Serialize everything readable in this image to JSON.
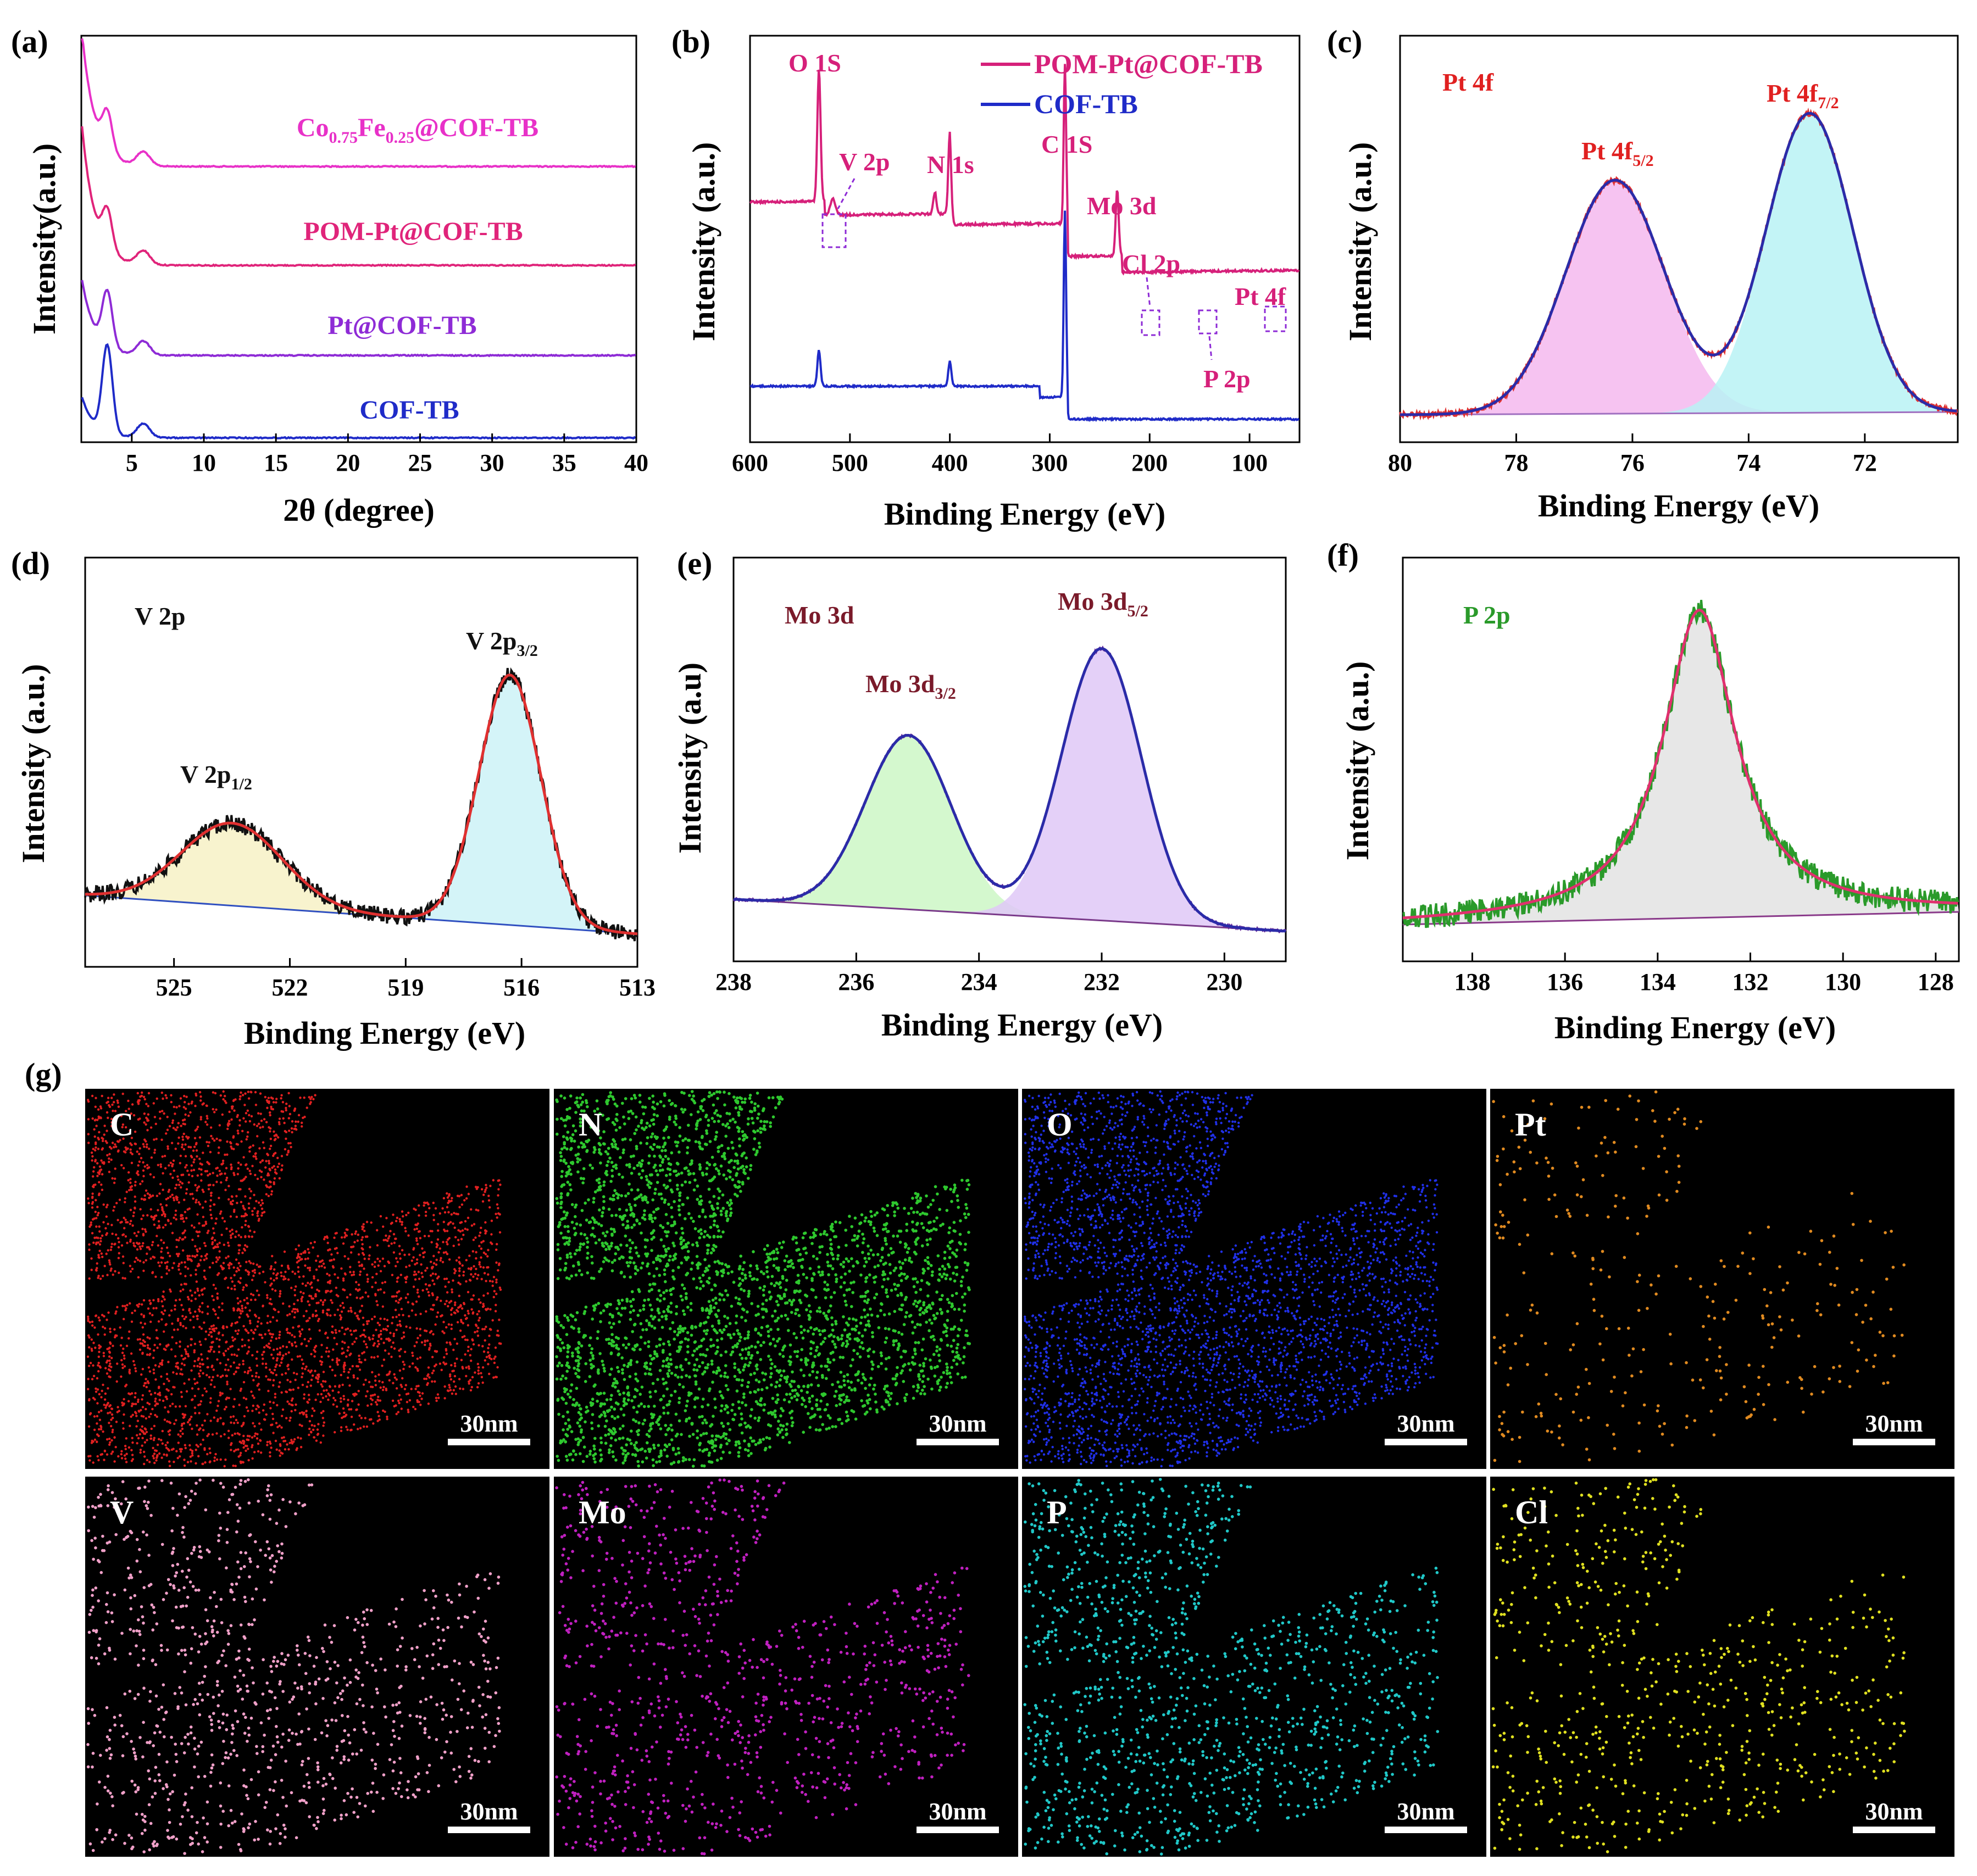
{
  "chart_data": [
    {
      "id": "a",
      "panel_label": "(a)",
      "type": "line",
      "xlabel": "2θ (degree)",
      "ylabel": "Intensity(a.u.)",
      "xlim": [
        1.5,
        40
      ],
      "xticks": [
        "5",
        "10",
        "15",
        "20",
        "25",
        "30",
        "35",
        "40"
      ],
      "series": [
        {
          "name": "Co0.75Fe0.25@COF-TB",
          "color": "#e831c8",
          "label_parts": [
            {
              "t": "Co",
              "sub": false
            },
            {
              "t": "0.75",
              "sub": true
            },
            {
              "t": "Fe",
              "sub": false
            },
            {
              "t": "0.25",
              "sub": true
            },
            {
              "t": "@COF-TB",
              "sub": false
            }
          ]
        },
        {
          "name": "POM-Pt@COF-TB",
          "color": "#e0247a",
          "label_parts": [
            {
              "t": "POM-Pt@COF-TB",
              "sub": false
            }
          ]
        },
        {
          "name": "Pt@COF-TB",
          "color": "#8e2bd6",
          "label_parts": [
            {
              "t": "Pt@COF-TB",
              "sub": false
            }
          ]
        },
        {
          "name": "COF-TB",
          "color": "#1f2bc8",
          "label_parts": [
            {
              "t": "COF-TB",
              "sub": false
            }
          ]
        }
      ],
      "peaks_2theta": [
        3.3,
        5.8
      ]
    },
    {
      "id": "b",
      "panel_label": "(b)",
      "type": "line",
      "xlabel": "Binding Energy (eV)",
      "ylabel": "Intensity (a.u.)",
      "xlim": [
        600,
        50
      ],
      "xticks": [
        "600",
        "500",
        "400",
        "300",
        "200",
        "100"
      ],
      "legend": [
        "POM-Pt@COF-TB",
        "COF-TB"
      ],
      "series": [
        {
          "name": "POM-Pt@COF-TB",
          "color": "#d6207a",
          "peaks_eV": [
            531,
            517,
            415,
            400,
            284.8,
            232.5
          ]
        },
        {
          "name": "COF-TB",
          "color": "#1f2bc8",
          "peaks_eV": [
            531,
            400,
            284.8
          ]
        }
      ],
      "annotations": [
        "O 1S",
        "V 2p",
        "N 1s",
        "C 1S",
        "Mo 3d",
        "Cl 2p",
        "Pt 4f",
        "P 2p"
      ]
    },
    {
      "id": "c",
      "panel_label": "(c)",
      "type": "line",
      "title": "Pt 4f",
      "xlabel": "Binding Energy (eV)",
      "ylabel": "Intensity (a.u.)",
      "xlim": [
        80,
        70.4
      ],
      "xticks": [
        "80",
        "78",
        "76",
        "74",
        "72"
      ],
      "fit_peaks": [
        {
          "name": "Pt 4f5/2",
          "center_eV": 76.3,
          "height": 0.78,
          "fill": "#f5b8ee"
        },
        {
          "name": "Pt 4f7/2",
          "center_eV": 72.95,
          "height": 1.0,
          "fill": "#b8f2f5"
        }
      ],
      "colors": {
        "raw": "#e03030",
        "fit": "#2b2ba8",
        "baseline": "#a070c0"
      }
    },
    {
      "id": "d",
      "panel_label": "(d)",
      "type": "line",
      "title": "V 2p",
      "xlabel": "Binding Energy (eV)",
      "ylabel": "Intensity (a.u.)",
      "xlim": [
        527.3,
        513
      ],
      "xticks": [
        "525",
        "522",
        "519",
        "516",
        "513"
      ],
      "fit_peaks": [
        {
          "name": "V 2p1/2",
          "center_eV": 523.5,
          "height": 0.33,
          "fill": "#f7f1c5"
        },
        {
          "name": "V 2p3/2",
          "center_eV": 516.3,
          "height": 1.0,
          "fill": "#cdf2f7"
        }
      ],
      "colors": {
        "raw": "#111111",
        "fit": "#e03030",
        "baseline": "#3050c0"
      }
    },
    {
      "id": "e",
      "panel_label": "(e)",
      "type": "line",
      "title": "Mo 3d",
      "xlabel": "Binding Energy (eV)",
      "ylabel": "Intensity (a.u)",
      "xlim": [
        238,
        229
      ],
      "xticks": [
        "238",
        "236",
        "234",
        "232",
        "230"
      ],
      "fit_peaks": [
        {
          "name": "Mo 3d3/2",
          "center_eV": 235.15,
          "height": 0.64,
          "fill": "#cdf7c6"
        },
        {
          "name": "Mo 3d5/2",
          "center_eV": 232.0,
          "height": 1.0,
          "fill": "#dfc8f7"
        }
      ],
      "colors": {
        "raw": "#6a2b9a",
        "fit": "#2b2ba8",
        "baseline": "#7a3a8a"
      }
    },
    {
      "id": "f",
      "panel_label": "(f)",
      "type": "line",
      "title": "P 2p",
      "xlabel": "Binding Energy (eV)",
      "ylabel": "Intensity (a.u.)",
      "xlim": [
        139.5,
        127.5
      ],
      "xticks": [
        "138",
        "136",
        "134",
        "132",
        "130",
        "128"
      ],
      "fit_peaks": [
        {
          "name": "P 2p",
          "center_eV": 133.1,
          "height": 1.0,
          "fill": "#e3e3e3"
        }
      ],
      "colors": {
        "raw": "#2a9a2a",
        "fit": "#e0306e",
        "baseline": "#8a3a8a"
      }
    }
  ],
  "panel_g": {
    "label": "(g)",
    "scale_bar": "30nm",
    "maps": [
      {
        "element": "C",
        "color": "#e02020",
        "density": 9000
      },
      {
        "element": "N",
        "color": "#2ec82e",
        "density": 3200
      },
      {
        "element": "O",
        "color": "#2030e8",
        "density": 6500
      },
      {
        "element": "Pt",
        "color": "#e08a20",
        "density": 320
      },
      {
        "element": "V",
        "color": "#f0a0c8",
        "density": 1000
      },
      {
        "element": "Mo",
        "color": "#c020c0",
        "density": 950
      },
      {
        "element": "P",
        "color": "#20c8c8",
        "density": 1300
      },
      {
        "element": "Cl",
        "color": "#e0e020",
        "density": 650
      }
    ]
  }
}
